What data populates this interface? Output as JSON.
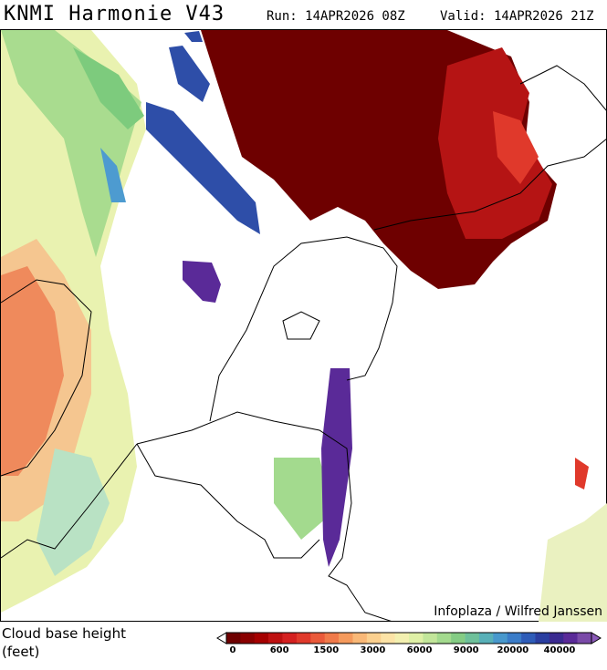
{
  "header": {
    "title": "KNMI Harmonie V43",
    "run": "Run: 14APR2026 08Z",
    "valid": "Valid: 14APR2026 21Z"
  },
  "map": {
    "credit": "Infoplaza / Wilfred Janssen"
  },
  "legend": {
    "title_line1": "Cloud base height",
    "title_line2": "(feet)",
    "colors": [
      "#6e0000",
      "#8a0000",
      "#a50000",
      "#be1010",
      "#d42020",
      "#e0392b",
      "#ea5a3a",
      "#f07a4a",
      "#f59a5c",
      "#f9b877",
      "#fbd08f",
      "#fce3a6",
      "#f3f0b0",
      "#dff0a6",
      "#c2e69a",
      "#a3da8e",
      "#84cc84",
      "#6ec09a",
      "#58b0b8",
      "#4898cc",
      "#3a7cc8",
      "#2e5cb8",
      "#2a3ea0",
      "#3a2a90",
      "#5a2a98",
      "#7a4aa8"
    ],
    "labels": [
      "0",
      "600",
      "1500",
      "3000",
      "6000",
      "9000",
      "20000",
      "40000"
    ]
  }
}
